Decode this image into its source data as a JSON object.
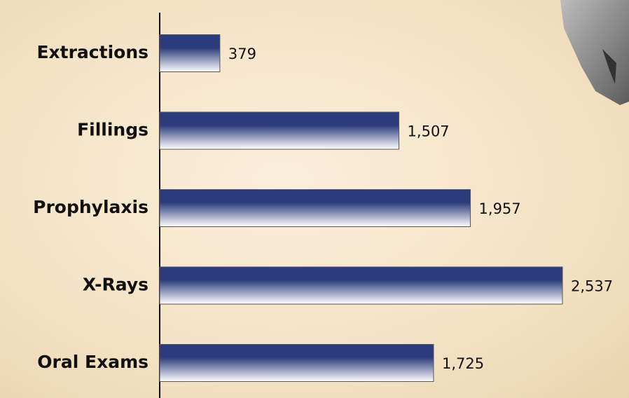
{
  "chart_data": {
    "type": "barh",
    "categories": [
      "Extractions",
      "Fillings",
      "Prophylaxis",
      "X-Rays",
      "Oral Exams"
    ],
    "values": [
      379,
      1507,
      1957,
      2537,
      1725
    ],
    "value_labels": [
      "379",
      "1,507",
      "1,957",
      "2,537",
      "1,725"
    ],
    "color": "#2b3b7c"
  }
}
